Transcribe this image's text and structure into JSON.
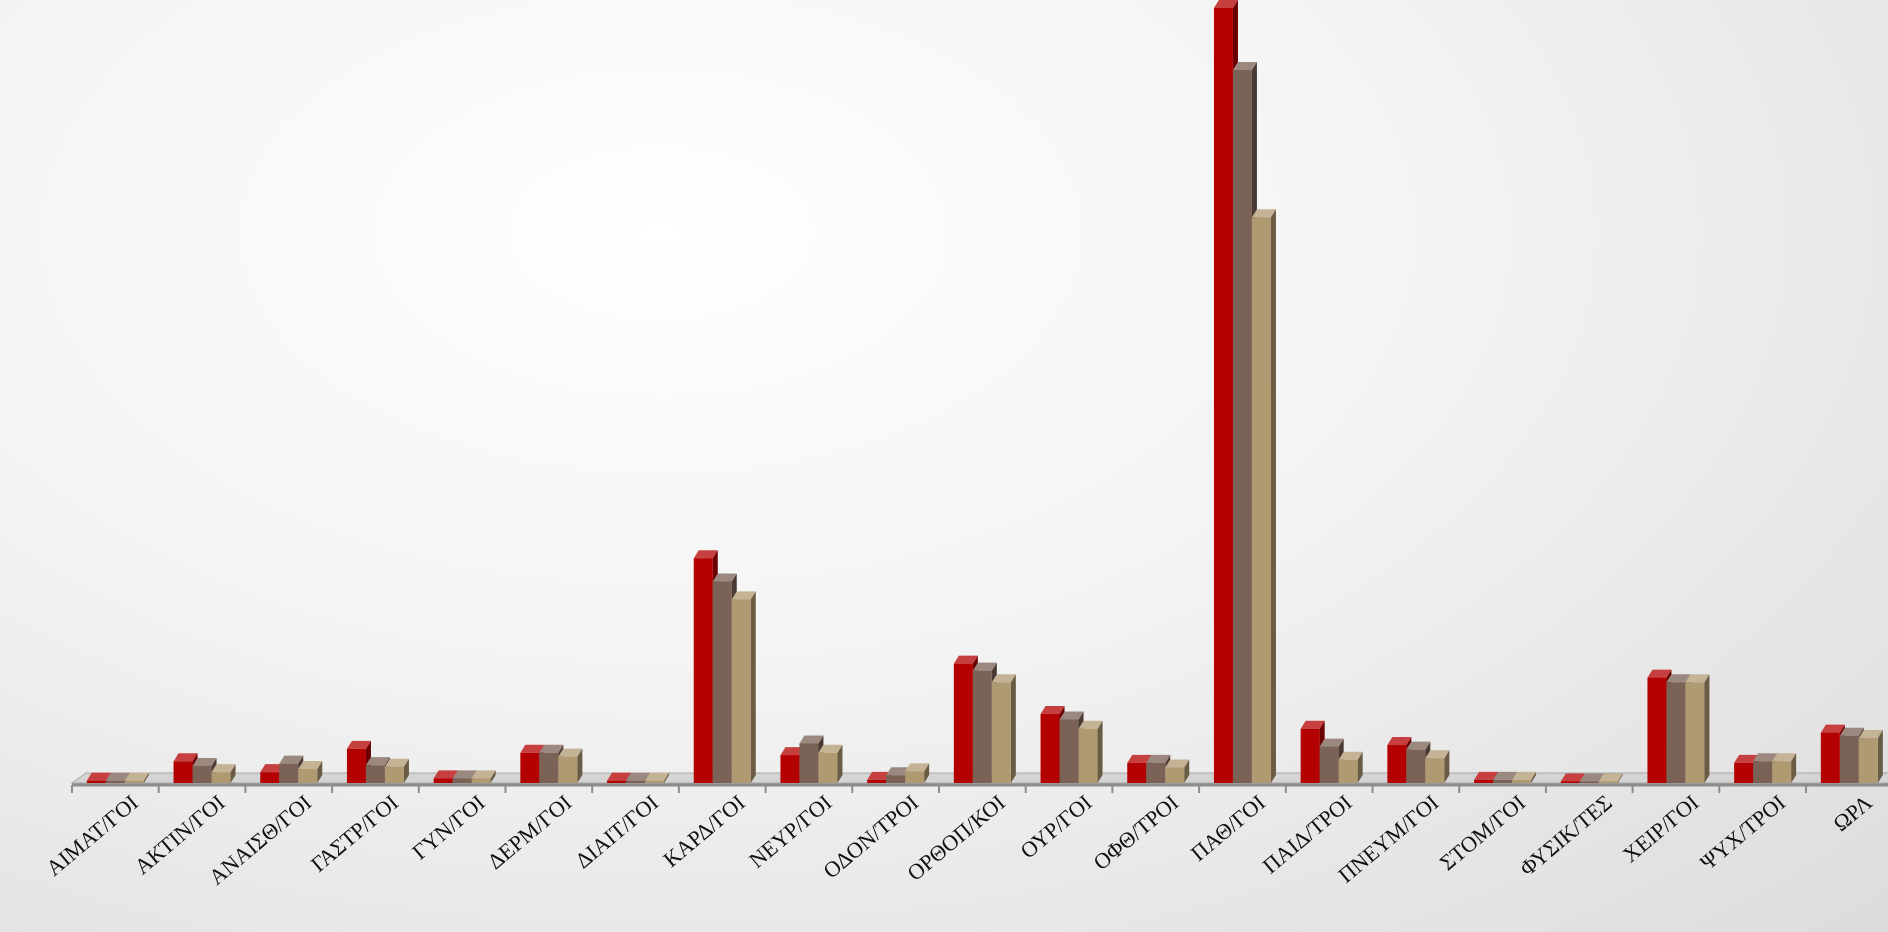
{
  "chart_data": {
    "type": "bar",
    "title": "",
    "xlabel": "",
    "ylabel": "",
    "ylim": [
      0,
      100
    ],
    "grid": false,
    "legend": "none",
    "categories": [
      "ΑΙΜΑΤ/ΓΟΙ",
      "ΑΚΤΙΝ/ΓΟΙ",
      "ΑΝΑΙΣΘ/ΓΟΙ",
      "ΓΑΣΤΡ/ΓΟΙ",
      "ΓΥΝ/ΓΟΙ",
      "ΔΕΡΜ/ΓΟΙ",
      "ΔΙΑΙΤ/ΓΟΙ",
      "ΚΑΡΔ/ΓΟΙ",
      "ΝΕΥΡ/ΓΟΙ",
      "ΟΔΟΝ/ΤΡΟΙ",
      "ΟΡΘΟΠ/ΚΟΙ",
      "ΟΥΡ/ΓΟΙ",
      "ΟΦΘ/ΤΡΟΙ",
      "ΠΑΘ/ΓΟΙ",
      "ΠΑΙΔ/ΤΡΟΙ",
      "ΠΝΕΥΜ/ΓΟΙ",
      "ΣΤΟΜ/ΓΟΙ",
      "ΦΥΣΙΚ/ΤΕΣ",
      "ΧΕΙΡ/ΓΟΙ",
      "ΨΥΧ/ΤΡΟΙ",
      "ΩΡΛ"
    ],
    "series": [
      {
        "color": "#b30000",
        "values": [
          0.3,
          2.8,
          1.4,
          4.4,
          0.6,
          3.9,
          0.3,
          29.0,
          3.6,
          0.4,
          15.4,
          8.9,
          2.6,
          100.0,
          7.0,
          4.9,
          0.4,
          0.2,
          13.6,
          2.6,
          6.5
        ]
      },
      {
        "color": "#7a6256",
        "values": [
          0.3,
          2.2,
          2.5,
          2.3,
          0.6,
          3.9,
          0.3,
          26.0,
          5.1,
          1.0,
          14.5,
          8.2,
          2.6,
          92.0,
          4.7,
          4.3,
          0.4,
          0.2,
          13.0,
          2.8,
          6.1
        ]
      },
      {
        "color": "#b09a72",
        "values": [
          0.3,
          1.4,
          1.8,
          2.1,
          0.6,
          3.4,
          0.3,
          23.7,
          3.9,
          1.5,
          13.0,
          7.0,
          2.0,
          73.0,
          3.0,
          3.2,
          0.4,
          0.2,
          13.0,
          2.8,
          5.8
        ]
      }
    ]
  }
}
